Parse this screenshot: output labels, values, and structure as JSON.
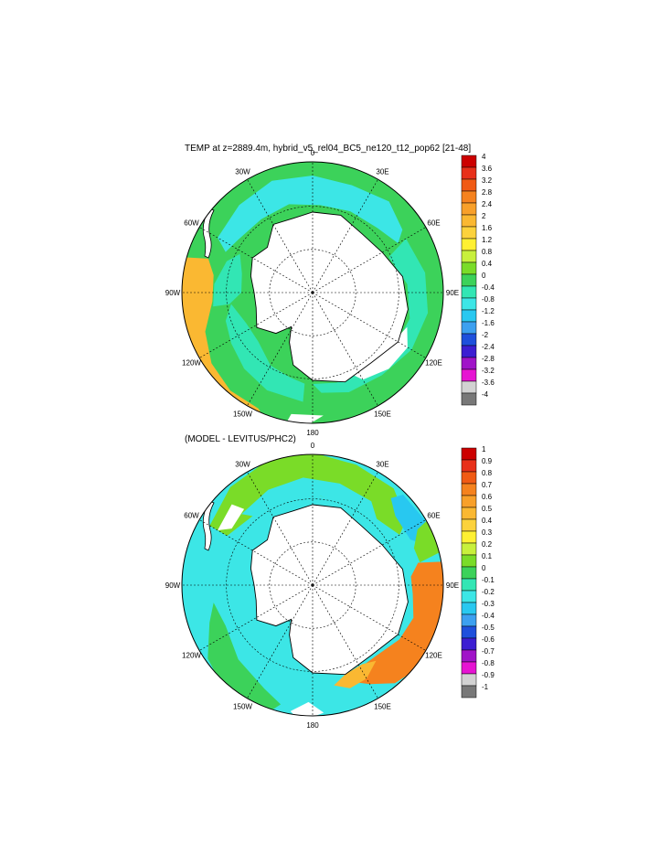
{
  "panels": [
    {
      "title": "TEMP at z=2889.4m, hybrid_v5_rel04_BC5_ne120_t12_pop62 [21-48]",
      "lon_labels": [
        "0",
        "30E",
        "60E",
        "90E",
        "120E",
        "150E",
        "180",
        "150W",
        "120W",
        "90W",
        "60W",
        "30W"
      ],
      "colorbar": {
        "labels": [
          "4",
          "3.6",
          "3.2",
          "2.8",
          "2.4",
          "2",
          "1.6",
          "1.2",
          "0.8",
          "0.4",
          "0",
          "-0.4",
          "-0.8",
          "-1.2",
          "-1.6",
          "-2",
          "-2.4",
          "-2.8",
          "-3.2",
          "-3.6",
          "-4"
        ],
        "colors": [
          "#cc0000",
          "#e8301a",
          "#f05a14",
          "#f5821e",
          "#f8a02a",
          "#fab832",
          "#fcd23c",
          "#fff032",
          "#c8f03c",
          "#7adc28",
          "#3cd25a",
          "#32e6b4",
          "#3ce6e6",
          "#28c8f0",
          "#3ca0f0",
          "#1e50dc",
          "#3c1ed2",
          "#a014c8",
          "#e614d2",
          "#d2d2d2",
          "#787878"
        ]
      }
    },
    {
      "title": "(MODEL - LEVITUS/PHC2)",
      "lon_labels": [
        "0",
        "30E",
        "60E",
        "90E",
        "120E",
        "150E",
        "180",
        "150W",
        "120W",
        "90W",
        "60W",
        "30W"
      ],
      "colorbar": {
        "labels": [
          "1",
          "0.9",
          "0.8",
          "0.7",
          "0.6",
          "0.5",
          "0.4",
          "0.3",
          "0.2",
          "0.1",
          "0",
          "-0.1",
          "-0.2",
          "-0.3",
          "-0.4",
          "-0.5",
          "-0.6",
          "-0.7",
          "-0.8",
          "-0.9",
          "-1"
        ],
        "colors": [
          "#cc0000",
          "#e8301a",
          "#f05a14",
          "#f5821e",
          "#f8a02a",
          "#fab832",
          "#fcd23c",
          "#fff032",
          "#c8f03c",
          "#7adc28",
          "#3cd25a",
          "#32e6b4",
          "#3ce6e6",
          "#28c8f0",
          "#3ca0f0",
          "#1e50dc",
          "#3c1ed2",
          "#a014c8",
          "#e614d2",
          "#d2d2d2",
          "#787878"
        ]
      }
    }
  ]
}
